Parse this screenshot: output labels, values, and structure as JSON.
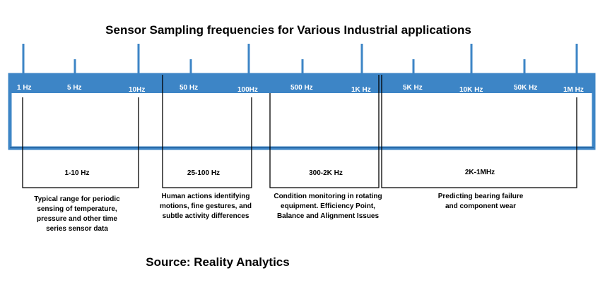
{
  "title": "Sensor Sampling frequencies for Various Industrial applications",
  "source": "Source: Reality Analytics",
  "colors": {
    "bar": "#3d85c6",
    "bar_dark": "#2a6aa8",
    "tick": "#3d85c6",
    "label": "#ffffff",
    "bracket": "#000000"
  },
  "scale_labels": [
    "1 Hz",
    "5 Hz",
    "10Hz",
    "50 Hz",
    "100Hz",
    "500 Hz",
    "1K Hz",
    "5K Hz",
    "10K Hz",
    "50K Hz",
    "1M Hz"
  ],
  "ranges": [
    {
      "title": "1-10 Hz",
      "description": [
        "Typical range for periodic",
        "sensing of temperature,",
        "pressure and other time",
        "series sensor data"
      ]
    },
    {
      "title": "25-100 Hz",
      "description": [
        "Human actions identifying",
        "motions, fine gestures, and",
        "subtle activity differences"
      ]
    },
    {
      "title": "300-2K Hz",
      "description": [
        "Condition monitoring in rotating",
        "equipment. Efficiency Point,",
        "Balance and Alignment Issues"
      ]
    },
    {
      "title": "2K-1MHz",
      "description": [
        "Predicting bearing failure",
        "and component wear"
      ]
    }
  ]
}
